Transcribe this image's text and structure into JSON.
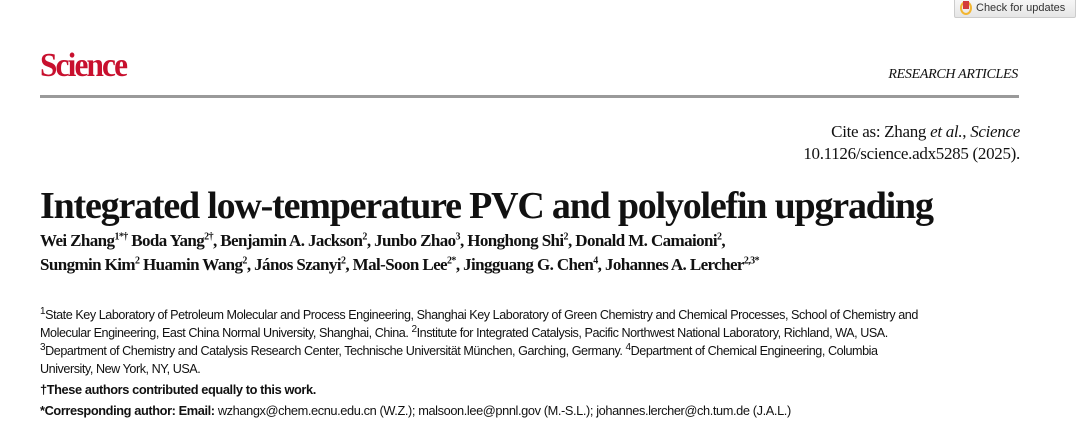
{
  "toolbar": {
    "check_updates_label": "Check for updates"
  },
  "header": {
    "logo": "Science",
    "section": "RESEARCH ARTICLES",
    "brand_color": "#c8102e"
  },
  "citation": {
    "prefix": "Cite as: Zhang ",
    "etal": "et al.",
    "sep": ", ",
    "journal": "Science",
    "doi_line": "10.1126/science.adx5285 (2025)."
  },
  "title": "Integrated low-temperature PVC and polyolefin upgrading",
  "authors": [
    {
      "name": "Wei Zhang",
      "sup": "1*†",
      "sep": " "
    },
    {
      "name": "Boda Yang",
      "sup": "2†",
      "sep": ", "
    },
    {
      "name": "Benjamin A. Jackson",
      "sup": "2",
      "sep": ", "
    },
    {
      "name": "Junbo Zhao",
      "sup": "3",
      "sep": ", "
    },
    {
      "name": "Honghong Shi",
      "sup": "2",
      "sep": ", "
    },
    {
      "name": "Donald M. Camaioni",
      "sup": "2",
      "sep": ","
    },
    {
      "name": "Sungmin Kim",
      "sup": "2",
      "sep": " "
    },
    {
      "name": "Huamin Wang",
      "sup": "2",
      "sep": ", "
    },
    {
      "name": "János Szanyi",
      "sup": "2",
      "sep": ", "
    },
    {
      "name": "Mal-Soon Lee",
      "sup": "2*",
      "sep": ", "
    },
    {
      "name": "Jingguang G. Chen",
      "sup": "4",
      "sep": ", "
    },
    {
      "name": "Johannes A. Lercher",
      "sup": "2,3*",
      "sep": ""
    }
  ],
  "affiliations": [
    {
      "sup": "1",
      "text": "State Key Laboratory of Petroleum Molecular and Process Engineering, Shanghai Key Laboratory of Green Chemistry and Chemical Processes, School of Chemistry and Molecular Engineering, East China Normal University, Shanghai, China. "
    },
    {
      "sup": "2",
      "text": "Institute for Integrated Catalysis, Pacific Northwest National Laboratory, Richland, WA, USA."
    },
    {
      "sup": "3",
      "text": "Department of Chemistry and Catalysis Research Center, Technische Universität München, Garching, Germany. "
    },
    {
      "sup": "4",
      "text": "Department of Chemical Engineering, Columbia University, New York, NY, USA."
    }
  ],
  "equal_contribution": "†These authors contributed equally to this work.",
  "corresponding": {
    "label": "*Corresponding author: Email:",
    "emails": " wzhangx@chem.ecnu.edu.cn (W.Z.); malsoon.lee@pnnl.gov (M.-S.L.); johannes.lercher@ch.tum.de (J.A.L.)"
  }
}
